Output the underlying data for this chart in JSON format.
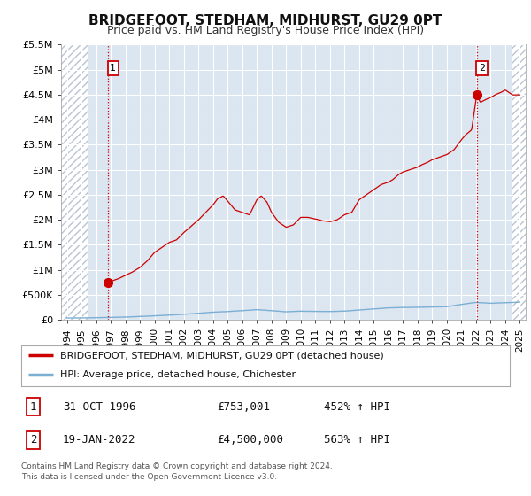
{
  "title": "BRIDGEFOOT, STEDHAM, MIDHURST, GU29 0PT",
  "subtitle": "Price paid vs. HM Land Registry's House Price Index (HPI)",
  "ylim": [
    0,
    5500000
  ],
  "xlim_min": 1993.6,
  "xlim_max": 2025.4,
  "yticks": [
    0,
    500000,
    1000000,
    1500000,
    2000000,
    2500000,
    3000000,
    3500000,
    4000000,
    4500000,
    5000000,
    5500000
  ],
  "ytick_labels": [
    "£0",
    "£500K",
    "£1M",
    "£1.5M",
    "£2M",
    "£2.5M",
    "£3M",
    "£3.5M",
    "£4M",
    "£4.5M",
    "£5M",
    "£5.5M"
  ],
  "xticks": [
    1994,
    1995,
    1996,
    1997,
    1998,
    1999,
    2000,
    2001,
    2002,
    2003,
    2004,
    2005,
    2006,
    2007,
    2008,
    2009,
    2010,
    2011,
    2012,
    2013,
    2014,
    2015,
    2016,
    2017,
    2018,
    2019,
    2020,
    2021,
    2022,
    2023,
    2024,
    2025
  ],
  "plot_bg_color": "#dce6f1",
  "fig_bg_color": "#ffffff",
  "hatch_color": "#b8c4d4",
  "grid_color": "#ffffff",
  "red_line_color": "#cc0000",
  "blue_line_color": "#7bafd4",
  "sale1_x": 1996.83,
  "sale1_y": 753001,
  "sale2_x": 2022.05,
  "sale2_y": 4500000,
  "legend_line1": "BRIDGEFOOT, STEDHAM, MIDHURST, GU29 0PT (detached house)",
  "legend_line2": "HPI: Average price, detached house, Chichester",
  "table_row1": [
    "1",
    "31-OCT-1996",
    "£753,001",
    "452% ↑ HPI"
  ],
  "table_row2": [
    "2",
    "19-JAN-2022",
    "£4,500,000",
    "563% ↑ HPI"
  ],
  "footer": "Contains HM Land Registry data © Crown copyright and database right 2024.\nThis data is licensed under the Open Government Licence v3.0.",
  "hatch_left_end": 1995.5,
  "hatch_right_start": 2024.5,
  "hpi_pieces_x": [
    1994,
    1995,
    1996,
    1997,
    1998,
    1999,
    2000,
    2001,
    2002,
    2003,
    2004,
    2005,
    2006,
    2007,
    2008,
    2009,
    2010,
    2011,
    2012,
    2013,
    2014,
    2015,
    2016,
    2017,
    2018,
    2019,
    2020,
    2021,
    2022,
    2023,
    2024,
    2025
  ],
  "hpi_pieces_y": [
    38,
    40,
    44,
    50,
    57,
    67,
    82,
    95,
    113,
    132,
    155,
    167,
    185,
    205,
    185,
    162,
    175,
    170,
    168,
    175,
    198,
    220,
    240,
    248,
    252,
    258,
    265,
    310,
    350,
    332,
    345,
    355
  ],
  "red_pieces_x": [
    1996.83,
    1997.5,
    1998,
    1998.5,
    1999,
    1999.5,
    2000,
    2000.5,
    2001,
    2001.5,
    2002,
    2002.3,
    2002.6,
    2003,
    2003.5,
    2004,
    2004.3,
    2004.7,
    2005,
    2005.5,
    2006,
    2006.5,
    2007,
    2007.3,
    2007.7,
    2008,
    2008.5,
    2009,
    2009.5,
    2010,
    2010.5,
    2011,
    2011.5,
    2012,
    2012.5,
    2013,
    2013.5,
    2014,
    2014.5,
    2015,
    2015.5,
    2016,
    2016.3,
    2016.7,
    2017,
    2017.5,
    2018,
    2018.3,
    2018.7,
    2019,
    2019.5,
    2020,
    2020.5,
    2021,
    2021.3,
    2021.7,
    2022.05,
    2022.3,
    2022.6,
    2023,
    2023.3,
    2023.7,
    2024,
    2024.5
  ],
  "red_pieces_y": [
    753001,
    820000,
    890000,
    960000,
    1050000,
    1180000,
    1350000,
    1450000,
    1550000,
    1600000,
    1750000,
    1820000,
    1900000,
    2000000,
    2150000,
    2300000,
    2420000,
    2480000,
    2380000,
    2200000,
    2150000,
    2100000,
    2400000,
    2480000,
    2350000,
    2150000,
    1950000,
    1850000,
    1900000,
    2050000,
    2050000,
    2020000,
    1980000,
    1960000,
    2000000,
    2100000,
    2150000,
    2400000,
    2500000,
    2600000,
    2700000,
    2750000,
    2800000,
    2900000,
    2950000,
    3000000,
    3050000,
    3100000,
    3150000,
    3200000,
    3250000,
    3300000,
    3400000,
    3600000,
    3700000,
    3800000,
    4500000,
    4350000,
    4400000,
    4450000,
    4500000,
    4550000,
    4600000,
    4500000
  ]
}
